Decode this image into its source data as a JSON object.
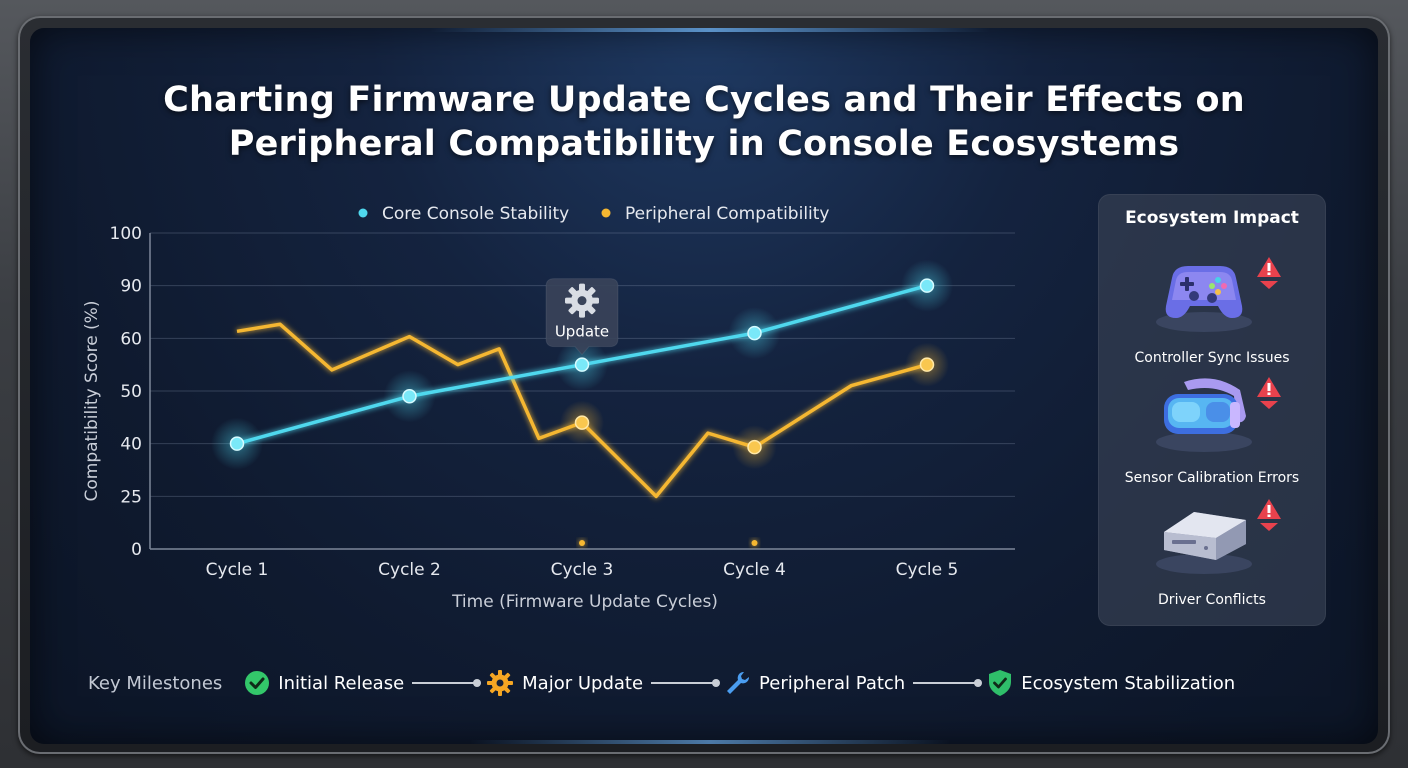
{
  "title": {
    "line1": "Charting Firmware Update Cycles and Their Effects on",
    "line2": "Peripheral Compatibility in Console Ecosystems"
  },
  "chart_data": {
    "type": "line",
    "categories": [
      "Cycle 1",
      "Cycle 2",
      "Cycle 3",
      "Cycle 4",
      "Cycle 5"
    ],
    "xlabel": "Time (Firmware Update Cycles)",
    "ylabel": "Compatibility Score (%)",
    "y_tick_labels": [
      "0",
      "25",
      "40",
      "50",
      "60",
      "90",
      "100"
    ],
    "grid": true,
    "legend": "top-center",
    "series": [
      {
        "name": "Core Console Stability",
        "color": "#4fd8ee",
        "x": [
          1,
          2,
          3,
          4,
          5
        ],
        "y": [
          40,
          49,
          55,
          63,
          90
        ]
      },
      {
        "name": "Peripheral Compatibility",
        "color": "#f5b731",
        "x": [
          1,
          1.25,
          1.55,
          2,
          2.28,
          2.52,
          2.75,
          3,
          3.43,
          3.73,
          4,
          4.56,
          5
        ],
        "y": [
          64,
          68,
          54,
          61,
          55,
          58,
          41,
          44,
          25,
          42,
          39,
          51,
          55
        ]
      }
    ],
    "markers": {
      "core": [
        1,
        2,
        3,
        4,
        5
      ],
      "peripheral": [
        3,
        4,
        5
      ]
    },
    "annotation": {
      "x": 3,
      "y": 55,
      "text": "Update",
      "icon": "gear-icon"
    }
  },
  "ecosystem": {
    "title": "Ecosystem Impact",
    "items": [
      {
        "label": "Controller Sync Issues",
        "icon": "gamepad-icon",
        "alert": "warning-icon"
      },
      {
        "label": "Sensor Calibration Errors",
        "icon": "vr-headset-icon",
        "alert": "warning-icon"
      },
      {
        "label": "Driver Conflicts",
        "icon": "hard-drive-icon",
        "alert": "warning-icon"
      }
    ]
  },
  "milestones": {
    "title": "Key Milestones",
    "items": [
      {
        "label": "Initial Release",
        "icon": "check-circle-icon",
        "color": "#33c76a"
      },
      {
        "label": "Major Update",
        "icon": "gear-icon",
        "color": "#f5a623"
      },
      {
        "label": "Peripheral Patch",
        "icon": "wrench-icon",
        "color": "#4a9df0"
      },
      {
        "label": "Ecosystem Stabilization",
        "icon": "shield-check-icon",
        "color": "#2fbf6a"
      }
    ]
  }
}
